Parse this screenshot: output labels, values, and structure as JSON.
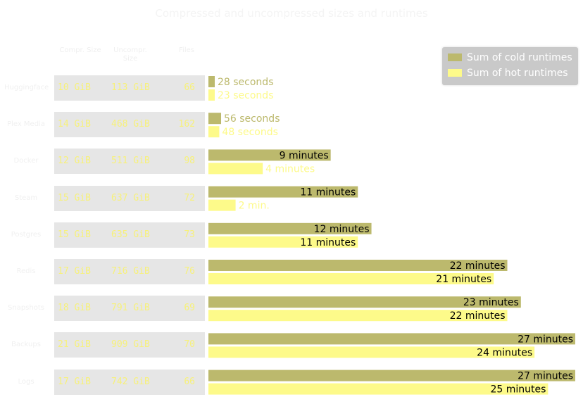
{
  "chart_data": {
    "type": "bar",
    "orientation": "horizontal",
    "title": "Compressed and uncompressed sizes and runtimes",
    "columns": [
      "Compr. Size",
      "Uncompr. Size",
      "Files"
    ],
    "rows": [
      {
        "label": "Huggingface",
        "compressed": "10 GiB",
        "uncompressed": "113 GiB",
        "files": "66"
      },
      {
        "label": "Plex Media",
        "compressed": "14 GiB",
        "uncompressed": "468 GiB",
        "files": "162"
      },
      {
        "label": "Docker",
        "compressed": "12 GiB",
        "uncompressed": "511 GiB",
        "files": "98"
      },
      {
        "label": "Steam",
        "compressed": "15 GiB",
        "uncompressed": "637 GiB",
        "files": "72"
      },
      {
        "label": "Postgres",
        "compressed": "15 GiB",
        "uncompressed": "635 GiB",
        "files": "73"
      },
      {
        "label": "Redis",
        "compressed": "17 GiB",
        "uncompressed": "716 GiB",
        "files": "76"
      },
      {
        "label": "Snapshots",
        "compressed": "18 GiB",
        "uncompressed": "791 GiB",
        "files": "69"
      },
      {
        "label": "Backups",
        "compressed": "21 GiB",
        "uncompressed": "909 GiB",
        "files": "70"
      },
      {
        "label": "Logs",
        "compressed": "17 GiB",
        "uncompressed": "742 GiB",
        "files": "66"
      }
    ],
    "series": [
      {
        "name": "Sum of cold runtimes",
        "color": "#bcb96d",
        "values_seconds": [
          28,
          56,
          540,
          660,
          720,
          1320,
          1380,
          1620,
          1620
        ],
        "labels": [
          "28 seconds",
          "56 seconds",
          "9 minutes",
          "11 minutes",
          "12 minutes",
          "22 minutes",
          "23 minutes",
          "27 minutes",
          "27 minutes"
        ]
      },
      {
        "name": "Sum of hot runtimes",
        "color": "#fdfa8a",
        "values_seconds": [
          23,
          48,
          240,
          120,
          660,
          1260,
          1320,
          1440,
          1500
        ],
        "labels": [
          "23 seconds",
          "48 seconds",
          "4 minutes",
          "2 min.",
          "11 minutes",
          "21 minutes",
          "22 minutes",
          "24 minutes",
          "25 minutes"
        ]
      }
    ],
    "legend_position": "top-right",
    "grid": false
  }
}
